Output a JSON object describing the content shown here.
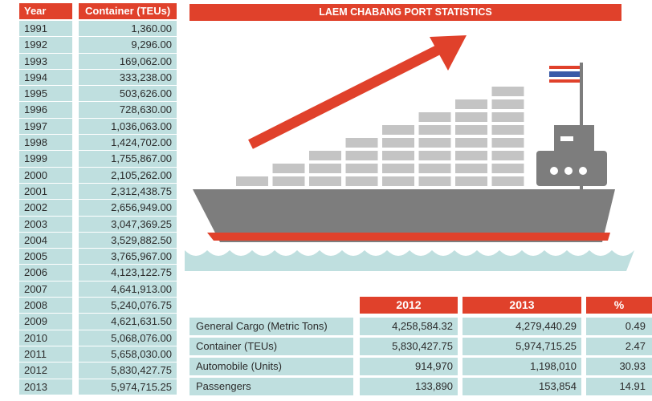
{
  "title": "LAEM CHABANG PORT STATISTICS",
  "colors": {
    "accent": "#e0412b",
    "cell": "#bfdfdf",
    "ship": "#7d7d7d",
    "container": "#c4c4c4",
    "water": "#bfdfdf"
  },
  "chart_data": [
    {
      "type": "table",
      "columns": [
        "Year",
        "Container (TEUs)"
      ],
      "rows": [
        [
          "1991",
          "1,360.00"
        ],
        [
          "1992",
          "9,296.00"
        ],
        [
          "1993",
          "169,062.00"
        ],
        [
          "1994",
          "333,238.00"
        ],
        [
          "1995",
          "503,626.00"
        ],
        [
          "1996",
          "728,630.00"
        ],
        [
          "1997",
          "1,036,063.00"
        ],
        [
          "1998",
          "1,424,702.00"
        ],
        [
          "1999",
          "1,755,867.00"
        ],
        [
          "2000",
          "2,105,262.00"
        ],
        [
          "2001",
          "2,312,438.75"
        ],
        [
          "2002",
          "2,656,949.00"
        ],
        [
          "2003",
          "3,047,369.25"
        ],
        [
          "2004",
          "3,529,882.50"
        ],
        [
          "2005",
          "3,765,967.00"
        ],
        [
          "2006",
          "4,123,122.75"
        ],
        [
          "2007",
          "4,641,913.00"
        ],
        [
          "2008",
          "5,240,076.75"
        ],
        [
          "2009",
          "4,621,631.50"
        ],
        [
          "2010",
          "5,068,076.00"
        ],
        [
          "2011",
          "5,658,030.00"
        ],
        [
          "2012",
          "5,830,427.75"
        ],
        [
          "2013",
          "5,974,715.25"
        ]
      ]
    },
    {
      "type": "table",
      "columns": [
        "",
        "2012",
        "2013",
        "%"
      ],
      "rows": [
        [
          "General Cargo (Metric Tons)",
          "4,258,584.32",
          "4,279,440.29",
          "0.49"
        ],
        [
          "Container (TEUs)",
          "5,830,427.75",
          "5,974,715.25",
          "2.47"
        ],
        [
          "Automobile (Units)",
          "914,970",
          "1,198,010",
          "30.93"
        ],
        [
          "Passengers",
          "133,890",
          "153,854",
          "14.91"
        ]
      ]
    }
  ]
}
